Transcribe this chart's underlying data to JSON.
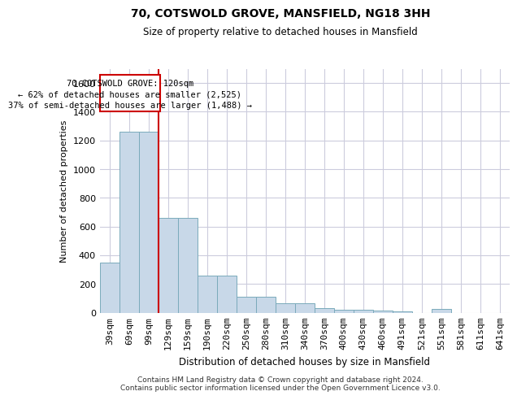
{
  "title_line1": "70, COTSWOLD GROVE, MANSFIELD, NG18 3HH",
  "title_line2": "Size of property relative to detached houses in Mansfield",
  "xlabel": "Distribution of detached houses by size in Mansfield",
  "ylabel": "Number of detached properties",
  "footer_line1": "Contains HM Land Registry data © Crown copyright and database right 2024.",
  "footer_line2": "Contains public sector information licensed under the Open Government Licence v3.0.",
  "annotation_line1": "70 COTSWOLD GROVE: 120sqm",
  "annotation_line2": "← 62% of detached houses are smaller (2,525)",
  "annotation_line3": "37% of semi-detached houses are larger (1,488) →",
  "bar_color": "#c8d8e8",
  "bar_edge_color": "#7aaabb",
  "grid_color": "#ccccdd",
  "vline_color": "#cc0000",
  "annotation_box_edge": "#cc0000",
  "ylim": [
    0,
    1700
  ],
  "bin_labels": [
    "39sqm",
    "69sqm",
    "99sqm",
    "129sqm",
    "159sqm",
    "190sqm",
    "220sqm",
    "250sqm",
    "280sqm",
    "310sqm",
    "340sqm",
    "370sqm",
    "400sqm",
    "430sqm",
    "460sqm",
    "491sqm",
    "521sqm",
    "551sqm",
    "581sqm",
    "611sqm",
    "641sqm"
  ],
  "bar_heights": [
    350,
    1260,
    1260,
    660,
    660,
    260,
    260,
    110,
    110,
    65,
    65,
    30,
    20,
    20,
    15,
    10,
    0,
    25,
    0,
    0,
    0
  ],
  "vline_bin_index": 2.5
}
